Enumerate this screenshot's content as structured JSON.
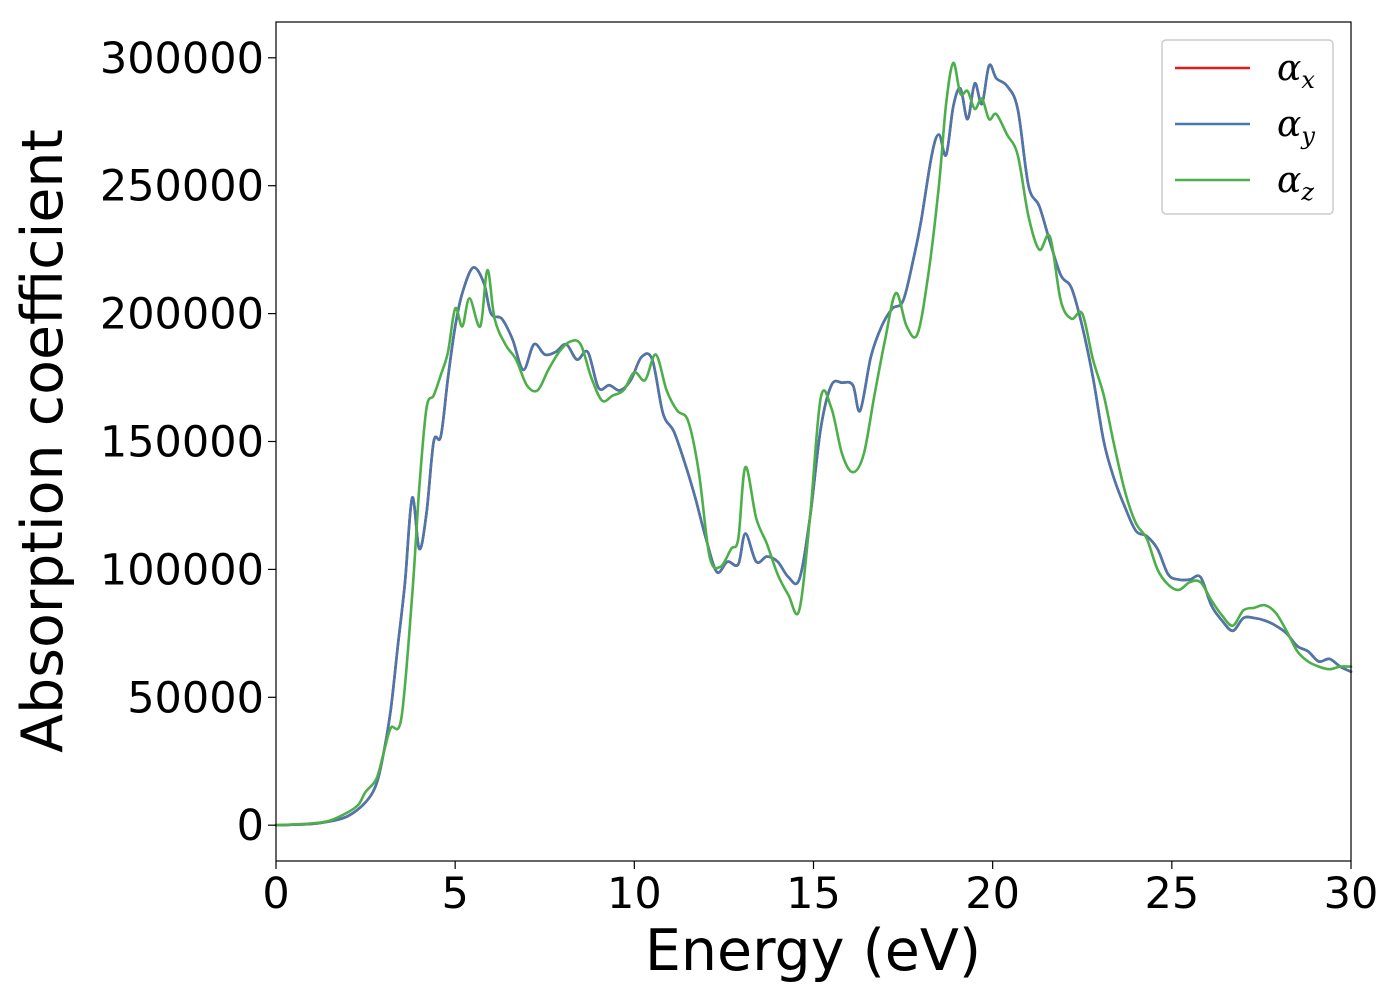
{
  "chart_data": {
    "type": "line",
    "title": "",
    "xlabel": "Energy (eV)",
    "ylabel": "Absorption coefficient",
    "xlim": [
      0,
      30
    ],
    "ylim": [
      -14000,
      314000
    ],
    "xticks": [
      0,
      5,
      10,
      15,
      20,
      25,
      30
    ],
    "yticks": [
      0,
      50000,
      100000,
      150000,
      200000,
      250000,
      300000
    ],
    "grid": false,
    "legend_position": "top-right",
    "series": [
      {
        "name": "α_x",
        "legend_symbol": "α",
        "legend_subscript": "x",
        "color": "#e41a1c",
        "x": [
          0,
          1,
          1.5,
          2,
          2.5,
          2.8,
          3.0,
          3.2,
          3.4,
          3.6,
          3.8,
          4.0,
          4.2,
          4.4,
          4.6,
          4.8,
          5.0,
          5.2,
          5.5,
          5.8,
          6.0,
          6.3,
          6.6,
          6.9,
          7.2,
          7.5,
          7.8,
          8.1,
          8.4,
          8.7,
          9.0,
          9.3,
          9.6,
          9.9,
          10.2,
          10.5,
          10.8,
          11.1,
          11.4,
          11.7,
          12.0,
          12.3,
          12.6,
          12.9,
          13.1,
          13.4,
          13.7,
          14.0,
          14.3,
          14.6,
          14.9,
          15.2,
          15.5,
          15.8,
          16.1,
          16.3,
          16.6,
          16.9,
          17.2,
          17.5,
          17.8,
          18.0,
          18.3,
          18.5,
          18.7,
          18.9,
          19.1,
          19.3,
          19.5,
          19.7,
          19.9,
          20.1,
          20.4,
          20.7,
          21.0,
          21.3,
          21.6,
          21.9,
          22.2,
          22.5,
          22.8,
          23.1,
          23.4,
          23.7,
          24.0,
          24.3,
          24.6,
          24.9,
          25.2,
          25.5,
          25.8,
          26.1,
          26.4,
          26.7,
          27.0,
          27.3,
          27.6,
          27.9,
          28.2,
          28.5,
          28.8,
          29.1,
          29.4,
          29.7,
          30.0
        ],
        "y": [
          0,
          500,
          1500,
          3500,
          9000,
          16000,
          28000,
          45000,
          70000,
          95000,
          128000,
          108000,
          122000,
          150000,
          152000,
          175000,
          195000,
          208000,
          218000,
          212000,
          200000,
          198000,
          190000,
          178000,
          188000,
          184000,
          185000,
          188000,
          182000,
          185000,
          171000,
          172000,
          170000,
          174000,
          183000,
          182000,
          161000,
          154000,
          142000,
          128000,
          112000,
          99000,
          103000,
          102000,
          114000,
          103000,
          105000,
          103000,
          97000,
          96000,
          120000,
          155000,
          172000,
          173000,
          172000,
          162000,
          183000,
          195000,
          202000,
          205000,
          222000,
          236000,
          262000,
          270000,
          262000,
          281000,
          288000,
          276000,
          290000,
          282000,
          297000,
          292000,
          289000,
          280000,
          250000,
          242000,
          228000,
          215000,
          210000,
          195000,
          175000,
          150000,
          135000,
          124000,
          115000,
          113000,
          108000,
          98000,
          96000,
          96000,
          97000,
          86000,
          80000,
          76000,
          81000,
          81000,
          80000,
          78000,
          75000,
          70000,
          68000,
          64000,
          65000,
          62000,
          60000
        ]
      },
      {
        "name": "α_y",
        "legend_symbol": "α",
        "legend_subscript": "y",
        "color": "#4a78ad",
        "x": [
          0,
          1,
          1.5,
          2,
          2.5,
          2.8,
          3.0,
          3.2,
          3.4,
          3.6,
          3.8,
          4.0,
          4.2,
          4.4,
          4.6,
          4.8,
          5.0,
          5.2,
          5.5,
          5.8,
          6.0,
          6.3,
          6.6,
          6.9,
          7.2,
          7.5,
          7.8,
          8.1,
          8.4,
          8.7,
          9.0,
          9.3,
          9.6,
          9.9,
          10.2,
          10.5,
          10.8,
          11.1,
          11.4,
          11.7,
          12.0,
          12.3,
          12.6,
          12.9,
          13.1,
          13.4,
          13.7,
          14.0,
          14.3,
          14.6,
          14.9,
          15.2,
          15.5,
          15.8,
          16.1,
          16.3,
          16.6,
          16.9,
          17.2,
          17.5,
          17.8,
          18.0,
          18.3,
          18.5,
          18.7,
          18.9,
          19.1,
          19.3,
          19.5,
          19.7,
          19.9,
          20.1,
          20.4,
          20.7,
          21.0,
          21.3,
          21.6,
          21.9,
          22.2,
          22.5,
          22.8,
          23.1,
          23.4,
          23.7,
          24.0,
          24.3,
          24.6,
          24.9,
          25.2,
          25.5,
          25.8,
          26.1,
          26.4,
          26.7,
          27.0,
          27.3,
          27.6,
          27.9,
          28.2,
          28.5,
          28.8,
          29.1,
          29.4,
          29.7,
          30.0
        ],
        "y": [
          0,
          500,
          1500,
          3500,
          9000,
          16000,
          28000,
          45000,
          70000,
          95000,
          128000,
          108000,
          122000,
          150000,
          152000,
          175000,
          195000,
          208000,
          218000,
          212000,
          200000,
          198000,
          190000,
          178000,
          188000,
          184000,
          185000,
          188000,
          182000,
          185000,
          171000,
          172000,
          170000,
          174000,
          183000,
          182000,
          161000,
          154000,
          142000,
          128000,
          112000,
          99000,
          103000,
          102000,
          114000,
          103000,
          105000,
          103000,
          97000,
          96000,
          120000,
          155000,
          172000,
          173000,
          172000,
          162000,
          183000,
          195000,
          202000,
          205000,
          222000,
          236000,
          262000,
          270000,
          262000,
          281000,
          288000,
          276000,
          290000,
          282000,
          297000,
          292000,
          289000,
          280000,
          250000,
          242000,
          228000,
          215000,
          210000,
          195000,
          175000,
          150000,
          135000,
          124000,
          115000,
          113000,
          108000,
          98000,
          96000,
          96000,
          97000,
          86000,
          80000,
          76000,
          81000,
          81000,
          80000,
          78000,
          75000,
          70000,
          68000,
          64000,
          65000,
          62000,
          60000
        ]
      },
      {
        "name": "α_z",
        "legend_symbol": "α",
        "legend_subscript": "z",
        "color": "#4daf4a",
        "x": [
          0,
          1,
          1.5,
          2,
          2.3,
          2.5,
          2.8,
          3.0,
          3.2,
          3.5,
          3.8,
          4.0,
          4.2,
          4.4,
          4.6,
          4.8,
          5.0,
          5.2,
          5.4,
          5.7,
          5.9,
          6.1,
          6.4,
          6.7,
          7.0,
          7.3,
          7.6,
          7.9,
          8.2,
          8.5,
          8.8,
          9.1,
          9.4,
          9.7,
          10.0,
          10.3,
          10.6,
          10.9,
          11.2,
          11.5,
          11.8,
          12.1,
          12.4,
          12.7,
          12.9,
          13.1,
          13.4,
          13.7,
          14.0,
          14.3,
          14.6,
          14.9,
          15.2,
          15.5,
          15.8,
          16.1,
          16.4,
          16.7,
          17.0,
          17.3,
          17.6,
          17.9,
          18.2,
          18.5,
          18.7,
          18.9,
          19.1,
          19.3,
          19.5,
          19.7,
          19.9,
          20.1,
          20.4,
          20.7,
          21.0,
          21.3,
          21.6,
          21.9,
          22.2,
          22.5,
          22.8,
          23.1,
          23.4,
          23.7,
          24.0,
          24.3,
          24.6,
          24.9,
          25.2,
          25.5,
          25.8,
          26.1,
          26.4,
          26.7,
          27.0,
          27.3,
          27.6,
          27.9,
          28.2,
          28.5,
          28.8,
          29.1,
          29.4,
          29.7,
          30.0
        ],
        "y": [
          0,
          700,
          1800,
          5000,
          8000,
          13000,
          18000,
          28000,
          38000,
          42000,
          90000,
          132000,
          163000,
          168000,
          176000,
          185000,
          202000,
          195000,
          206000,
          195000,
          217000,
          198000,
          188000,
          182000,
          172000,
          170000,
          178000,
          185000,
          189000,
          188000,
          175000,
          166000,
          168000,
          170000,
          177000,
          174000,
          184000,
          170000,
          162000,
          158000,
          138000,
          105000,
          101000,
          108000,
          112000,
          140000,
          120000,
          110000,
          98000,
          90000,
          84000,
          120000,
          167000,
          163000,
          145000,
          138000,
          145000,
          168000,
          190000,
          208000,
          195000,
          192000,
          215000,
          250000,
          282000,
          298000,
          286000,
          287000,
          280000,
          284000,
          276000,
          278000,
          270000,
          262000,
          238000,
          225000,
          230000,
          205000,
          198000,
          200000,
          182000,
          168000,
          148000,
          130000,
          118000,
          112000,
          100000,
          94000,
          92000,
          95000,
          95000,
          88000,
          82000,
          78000,
          84000,
          85000,
          86000,
          83000,
          76000,
          68000,
          64000,
          62000,
          61000,
          62000,
          62000
        ]
      }
    ]
  }
}
